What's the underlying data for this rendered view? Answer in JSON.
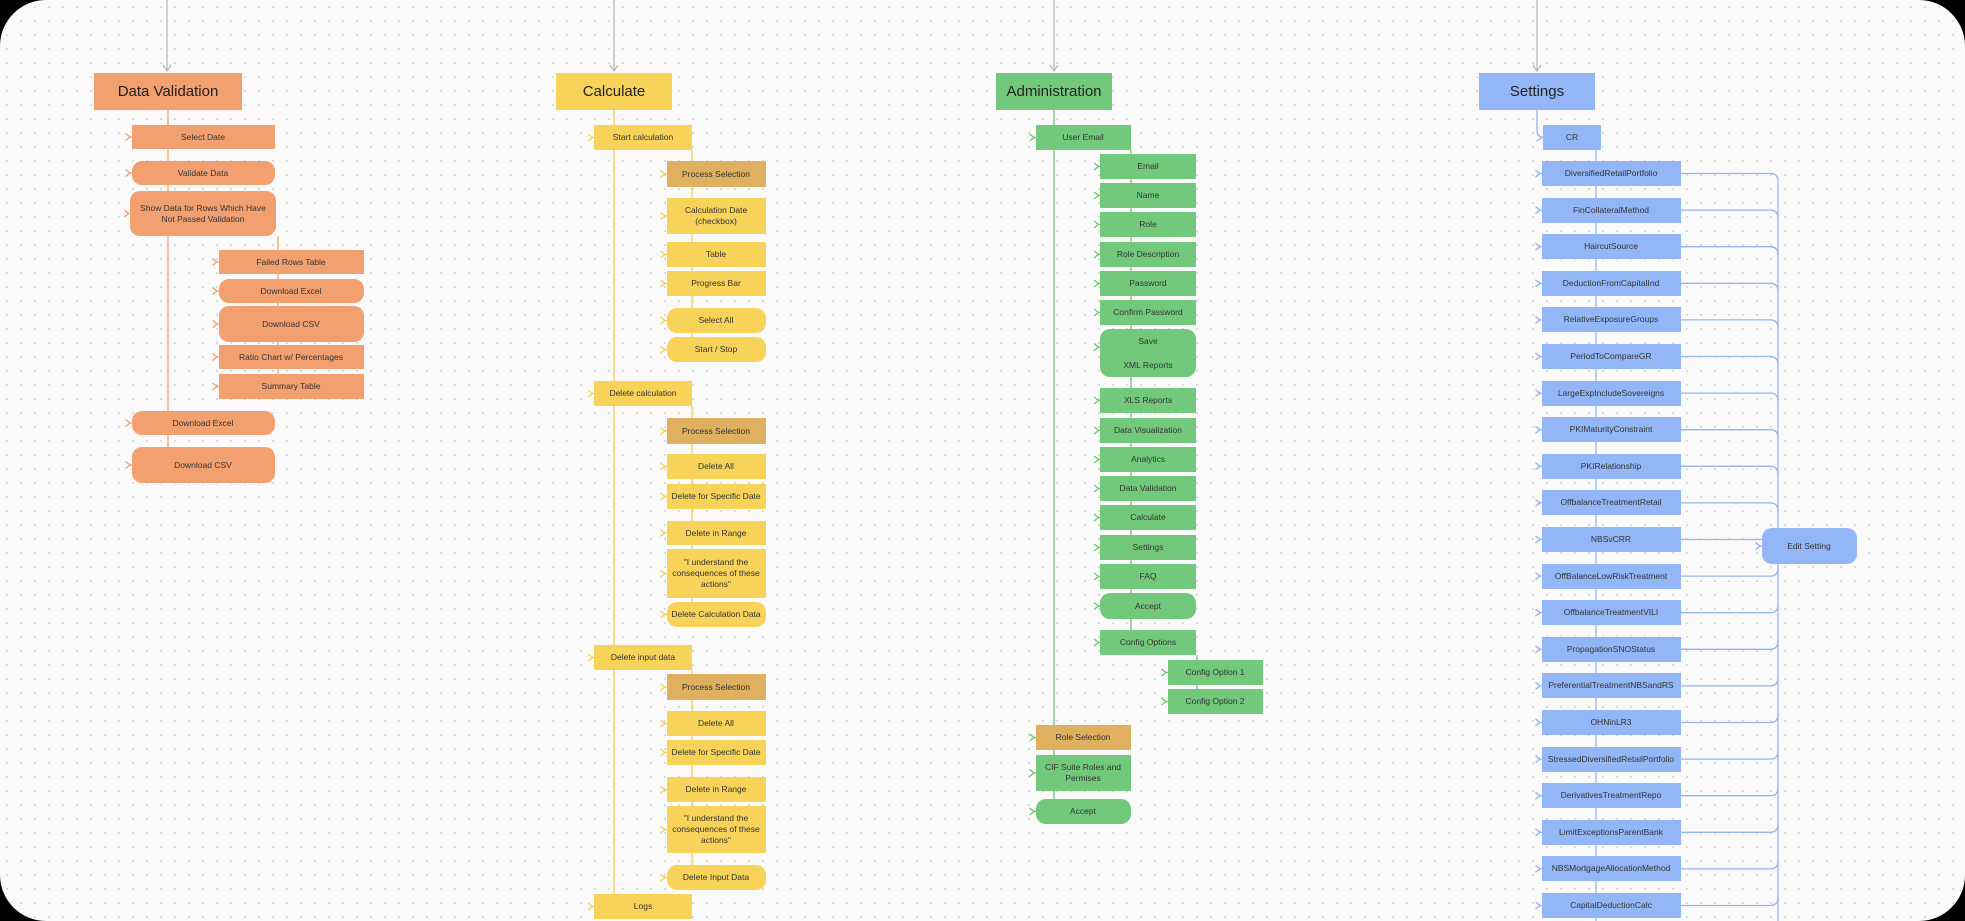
{
  "sections": [
    {
      "id": "dv",
      "title": "Data Validation",
      "color": "#f2a070",
      "border": "#e07b45",
      "line": "#f0a070",
      "items": [
        {
          "id": "dv1",
          "label": "Select Date"
        },
        {
          "id": "dv2",
          "label": "Validate Data"
        },
        {
          "id": "dv3",
          "label": "Show Data for Rows Which Have Not Passed Validation"
        },
        {
          "id": "dv4",
          "label": "Failed Rows Table"
        },
        {
          "id": "dv5",
          "label": "Download Excel"
        },
        {
          "id": "dv6",
          "label": "Download CSV"
        },
        {
          "id": "dv7",
          "label": "Ratio Chart w/ Percentages"
        },
        {
          "id": "dv8",
          "label": "Summary Table"
        },
        {
          "id": "dv9",
          "label": "Download Excel"
        },
        {
          "id": "dv10",
          "label": "Download CSV"
        }
      ]
    },
    {
      "id": "ca",
      "title": "Calculate",
      "color": "#f7d35a",
      "border": "#e8b93a",
      "line": "#f5d050",
      "accent": "#deb05f",
      "items": [
        {
          "id": "ca1",
          "label": "Start calculation"
        },
        {
          "id": "ca2",
          "label": "Process Selection"
        },
        {
          "id": "ca3",
          "label": "Calculation Date (checkbox)"
        },
        {
          "id": "ca4",
          "label": "Table"
        },
        {
          "id": "ca5",
          "label": "Progress Bar"
        },
        {
          "id": "ca6",
          "label": "Select All"
        },
        {
          "id": "ca7",
          "label": "Start / Stop"
        },
        {
          "id": "ca8",
          "label": "Delete calculation"
        },
        {
          "id": "ca9",
          "label": "Process Selection"
        },
        {
          "id": "ca10",
          "label": "Delete All"
        },
        {
          "id": "ca11",
          "label": "Delete for Specific Date"
        },
        {
          "id": "ca12",
          "label": "Delete in Range"
        },
        {
          "id": "ca13",
          "label": "\"I understand the consequences of these actions\""
        },
        {
          "id": "ca14",
          "label": "Delete Calculation Data"
        },
        {
          "id": "ca15",
          "label": "Delete input data"
        },
        {
          "id": "ca16",
          "label": "Process Selection"
        },
        {
          "id": "ca17",
          "label": "Delete All"
        },
        {
          "id": "ca18",
          "label": "Delete for Specific Date"
        },
        {
          "id": "ca19",
          "label": "Delete in Range"
        },
        {
          "id": "ca20",
          "label": "\"I understand the consequences of these actions\""
        },
        {
          "id": "ca21",
          "label": "Delete Input Data"
        },
        {
          "id": "ca22",
          "label": "Logs"
        }
      ]
    },
    {
      "id": "ad",
      "title": "Administration",
      "color": "#72c97b",
      "border": "#4fae5a",
      "line": "#6cc476",
      "accent": "#deb05f",
      "items": [
        {
          "id": "ad1",
          "label": "User Email"
        },
        {
          "id": "ad2",
          "label": "Email"
        },
        {
          "id": "ad3",
          "label": "Name"
        },
        {
          "id": "ad4",
          "label": "Role"
        },
        {
          "id": "ad5",
          "label": "Role Description"
        },
        {
          "id": "ad6",
          "label": "Password"
        },
        {
          "id": "ad7",
          "label": "Confirm Password"
        },
        {
          "id": "ad8",
          "label": "Save"
        },
        {
          "id": "ad9",
          "label": "XML Reports"
        },
        {
          "id": "ad10",
          "label": "XLS Reports"
        },
        {
          "id": "ad11",
          "label": "Data Visualization"
        },
        {
          "id": "ad12",
          "label": "Analytics"
        },
        {
          "id": "ad13",
          "label": "Data Validation"
        },
        {
          "id": "ad14",
          "label": "Calculate"
        },
        {
          "id": "ad15",
          "label": "Settings"
        },
        {
          "id": "ad16",
          "label": "FAQ"
        },
        {
          "id": "ad17",
          "label": "Accept"
        },
        {
          "id": "ad18",
          "label": "Config Options"
        },
        {
          "id": "ad19",
          "label": "Config Option 1"
        },
        {
          "id": "ad20",
          "label": "Config Option 2"
        },
        {
          "id": "ad21",
          "label": "Role Selection"
        },
        {
          "id": "ad22",
          "label": "CIF Suite Roles and Permises"
        },
        {
          "id": "ad23",
          "label": "Accept"
        }
      ]
    },
    {
      "id": "st",
      "title": "Settings",
      "color": "#93b6f7",
      "border": "#6f99ee",
      "line": "#94b4f0",
      "items": [
        {
          "id": "st0",
          "label": "CR"
        },
        {
          "id": "st1",
          "label": "DiversifiedRetailPortfolio"
        },
        {
          "id": "st2",
          "label": "FinCollateralMethod"
        },
        {
          "id": "st3",
          "label": "HaircutSource"
        },
        {
          "id": "st4",
          "label": "DeductionFromCapitalInd"
        },
        {
          "id": "st5",
          "label": "RelativeExposureGroups"
        },
        {
          "id": "st6",
          "label": "PeriodToCompareGR"
        },
        {
          "id": "st7",
          "label": "LargeExpIncludeSovereigns"
        },
        {
          "id": "st8",
          "label": "PKIMaturityConstraint"
        },
        {
          "id": "st9",
          "label": "PKIRelationship"
        },
        {
          "id": "st10",
          "label": "OffbalanceTreatmentRetail"
        },
        {
          "id": "st11",
          "label": "NBSvCRR"
        },
        {
          "id": "st12",
          "label": "OffBalanceLowRiskTreatment"
        },
        {
          "id": "st13",
          "label": "OffbalanceTreatmentVILI"
        },
        {
          "id": "st14",
          "label": "PropagationSNOStatus"
        },
        {
          "id": "st15",
          "label": "PreferentialTreatmentNBSandRS"
        },
        {
          "id": "st16",
          "label": "OHNinLR3"
        },
        {
          "id": "st17",
          "label": "StressedDiversifiedRetailPortfolio"
        },
        {
          "id": "st18",
          "label": "DerivativesTreatmentRepo"
        },
        {
          "id": "st19",
          "label": "LimitExceptionsParentBank"
        },
        {
          "id": "st20",
          "label": "NBSMortgageAllocationMethod"
        },
        {
          "id": "st21",
          "label": "CapitalDeductionCalc"
        },
        {
          "id": "st22",
          "label": "Edit Setting"
        }
      ]
    }
  ]
}
